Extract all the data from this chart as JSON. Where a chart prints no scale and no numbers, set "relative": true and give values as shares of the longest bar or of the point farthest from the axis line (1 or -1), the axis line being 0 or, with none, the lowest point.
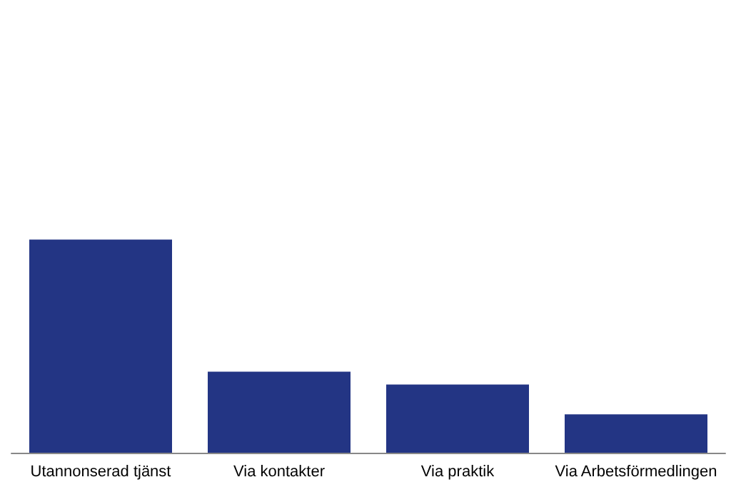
{
  "chart_data": {
    "type": "bar",
    "relative": true,
    "categories": [
      "Utannonserad tjänst",
      "Via kontakter",
      "Via praktik",
      "Via Arbetsförmedlingen"
    ],
    "values": [
      1,
      0.38,
      0.32,
      0.18
    ],
    "color": "#233584"
  }
}
